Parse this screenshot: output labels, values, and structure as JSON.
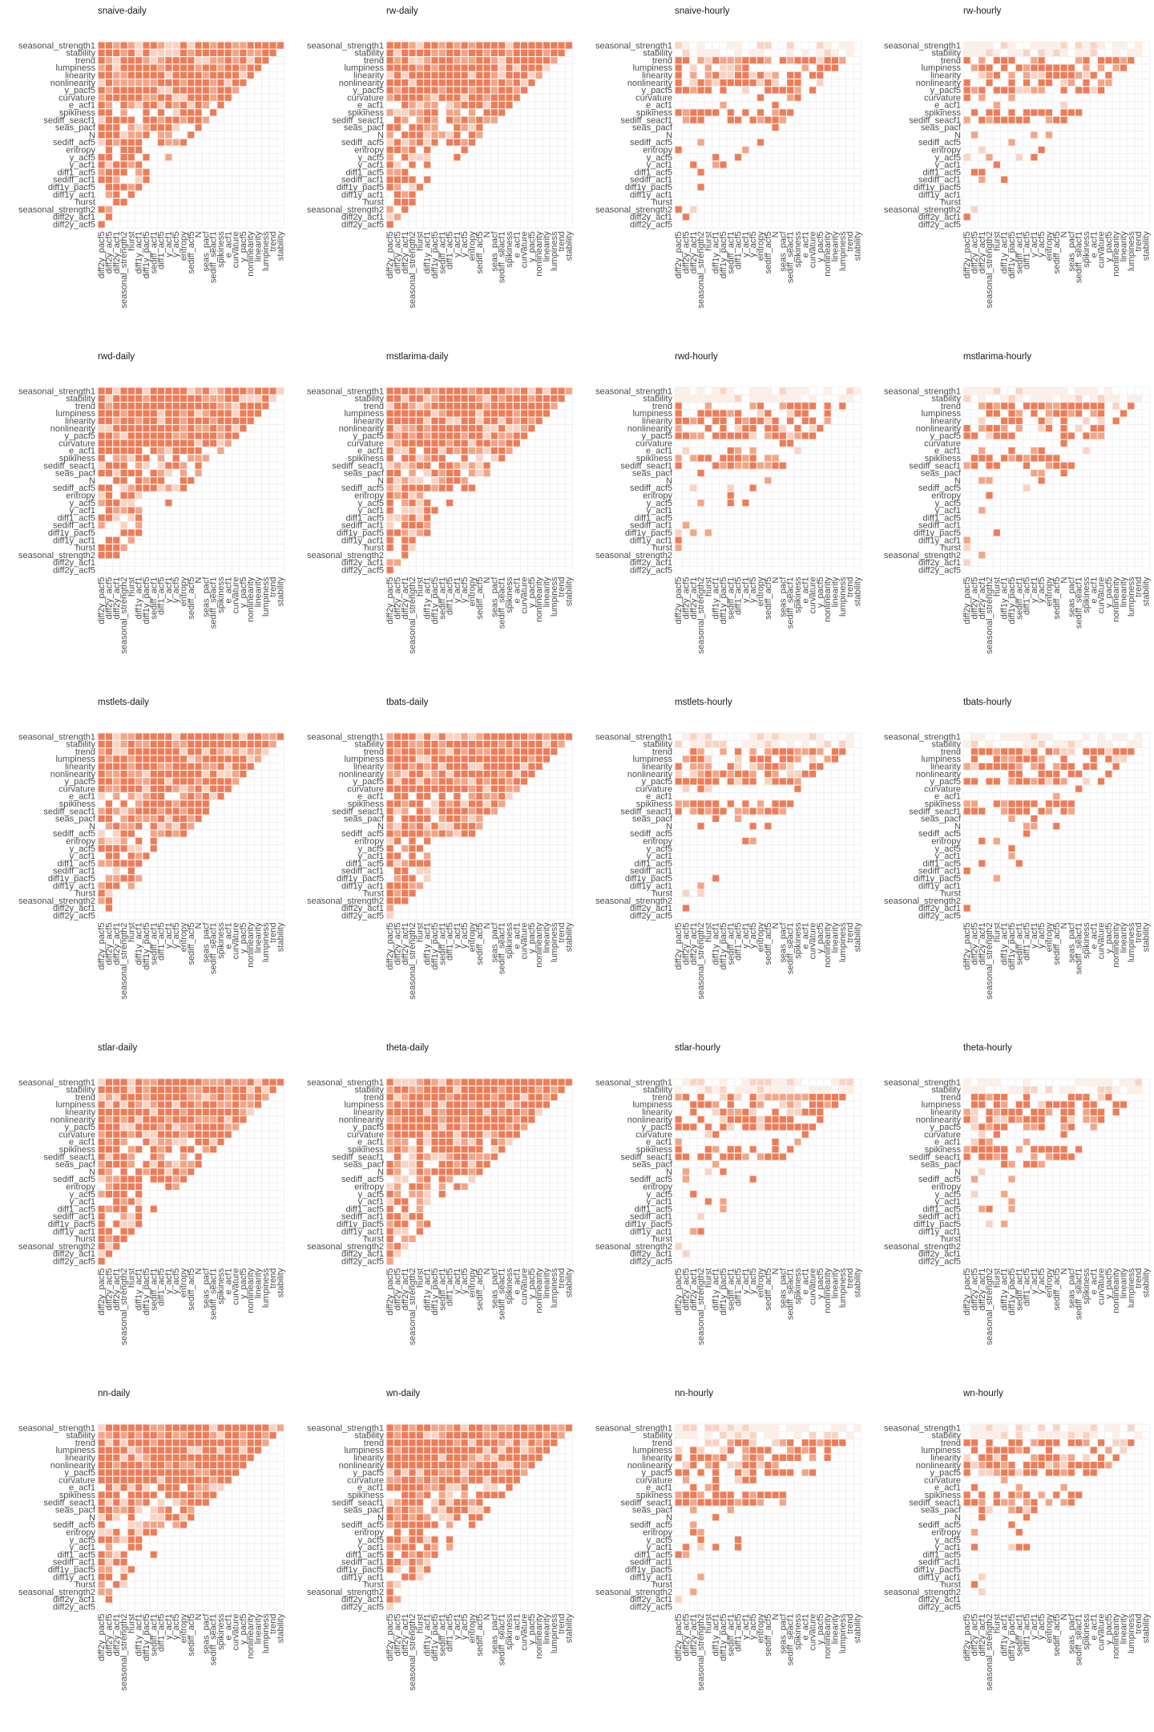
{
  "figure": {
    "features_y": [
      "seasonal_strength1",
      "stability",
      "trend",
      "lumpiness",
      "linearity",
      "nonlinearity",
      "y_pacf5",
      "curvature",
      "e_acf1",
      "spikiness",
      "sediff_seacf1",
      "seas_pacf",
      "N",
      "sediff_acf5",
      "entropy",
      "y_acf5",
      "y_acf1",
      "diff1_acf5",
      "sediff_acf1",
      "diff1y_pacf5",
      "diff1y_acf1",
      "hurst",
      "seasonal_strength2",
      "diff2y_acf1",
      "diff2y_acf5"
    ],
    "features_x": [
      "diff2y_pacf5",
      "diff2y_acf5",
      "diff2y_acf1",
      "seasonal_strength2",
      "hurst",
      "diff1y_acf1",
      "diff1y_pacf5",
      "sediff_acf1",
      "diff1_acf5",
      "y_acf1",
      "y_acf5",
      "entropy",
      "sediff_acf5",
      "N",
      "seas_pacf",
      "sediff_seacf1",
      "spikiness",
      "e_acf1",
      "curvature",
      "y_pacf5",
      "nonlinearity",
      "linearity",
      "lumpiness",
      "trend",
      "stability"
    ],
    "colors": {
      "strong": "#ee7c56",
      "mid": "#f4a586",
      "light": "#fbd3c2",
      "faint": "#fdeee6",
      "grid": "#ebebeb"
    }
  },
  "chart_data": [
    {
      "type": "heatmap",
      "title": "snaive-daily",
      "profile": "daily",
      "seed": 11
    },
    {
      "type": "heatmap",
      "title": "rw-daily",
      "profile": "daily",
      "seed": 23
    },
    {
      "type": "heatmap",
      "title": "snaive-hourly",
      "profile": "hourly",
      "seed": 37
    },
    {
      "type": "heatmap",
      "title": "rw-hourly",
      "profile": "hourly",
      "seed": 41
    },
    {
      "type": "heatmap",
      "title": "rwd-daily",
      "profile": "daily",
      "seed": 53
    },
    {
      "type": "heatmap",
      "title": "mstlarima-daily",
      "profile": "daily",
      "seed": 67
    },
    {
      "type": "heatmap",
      "title": "rwd-hourly",
      "profile": "hourly",
      "seed": 71
    },
    {
      "type": "heatmap",
      "title": "mstlarima-hourly",
      "profile": "hourly",
      "seed": 83
    },
    {
      "type": "heatmap",
      "title": "mstlets-daily",
      "profile": "daily",
      "seed": 97
    },
    {
      "type": "heatmap",
      "title": "tbats-daily",
      "profile": "daily",
      "seed": 101
    },
    {
      "type": "heatmap",
      "title": "mstlets-hourly",
      "profile": "hourly",
      "seed": 113
    },
    {
      "type": "heatmap",
      "title": "tbats-hourly",
      "profile": "hourly",
      "seed": 127
    },
    {
      "type": "heatmap",
      "title": "stlar-daily",
      "profile": "daily",
      "seed": 131
    },
    {
      "type": "heatmap",
      "title": "theta-daily",
      "profile": "daily",
      "seed": 149
    },
    {
      "type": "heatmap",
      "title": "stlar-hourly",
      "profile": "hourly",
      "seed": 157
    },
    {
      "type": "heatmap",
      "title": "theta-hourly",
      "profile": "hourly",
      "seed": 163
    },
    {
      "type": "heatmap",
      "title": "nn-daily",
      "profile": "daily",
      "seed": 173
    },
    {
      "type": "heatmap",
      "title": "wn-daily",
      "profile": "daily",
      "seed": 181
    },
    {
      "type": "heatmap",
      "title": "nn-hourly",
      "profile": "hourly",
      "seed": 191
    },
    {
      "type": "heatmap",
      "title": "wn-hourly",
      "profile": "hourly",
      "seed": 199
    }
  ]
}
